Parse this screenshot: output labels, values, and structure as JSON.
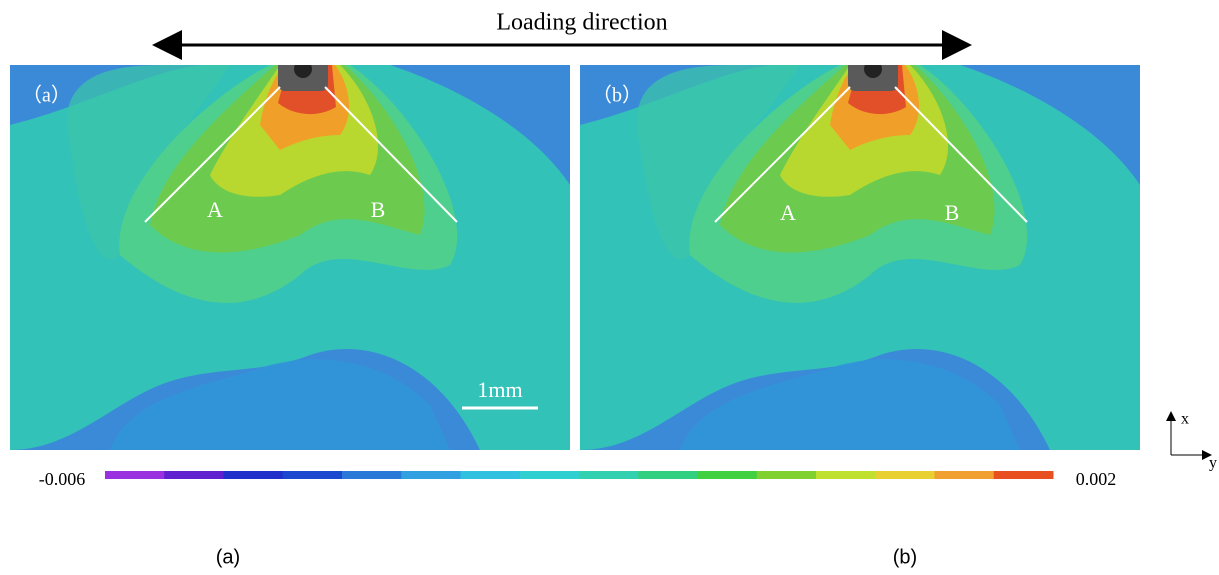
{
  "header": {
    "title": "Loading direction"
  },
  "panels": [
    {
      "label": "（a）",
      "point_a": "A",
      "point_b": "B",
      "caption": "(a)"
    },
    {
      "label": "（b）",
      "point_a": "A",
      "point_b": "B",
      "caption": "(b)"
    }
  ],
  "scale_bar": "1mm",
  "colorbar": {
    "min": -0.006,
    "max": 0.002
  },
  "axes": {
    "x": "x",
    "y": "y"
  }
}
